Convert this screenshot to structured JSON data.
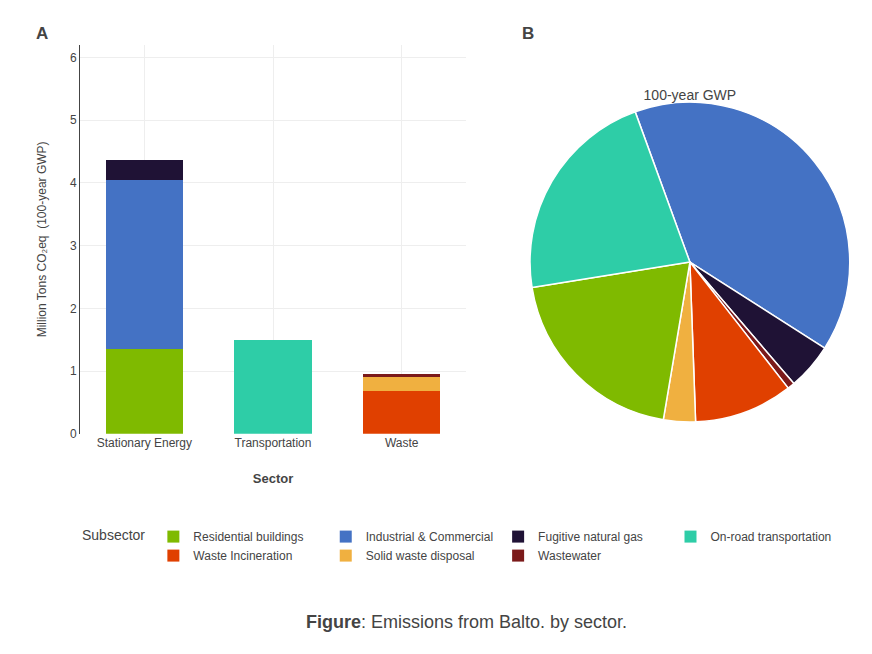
{
  "chart_data": [
    {
      "type": "bar",
      "stacked": true,
      "categories": [
        "Stationary Energy",
        "Transportation",
        "Waste"
      ],
      "series": [
        {
          "name": "Residential buildings",
          "color": "#7FBA00",
          "values": [
            1.35,
            0.0,
            0.0
          ]
        },
        {
          "name": "Industrial & Commercial",
          "color": "#4472C4",
          "values": [
            2.7,
            0.0,
            0.0
          ]
        },
        {
          "name": "Fugitive natural gas",
          "color": "#1F1235",
          "values": [
            0.32,
            0.0,
            0.0
          ]
        },
        {
          "name": "On-road transportation",
          "color": "#2ECDA7",
          "values": [
            0.0,
            1.5,
            0.0
          ]
        },
        {
          "name": "Waste Incineration",
          "color": "#E04000",
          "values": [
            0.0,
            0.0,
            0.68
          ]
        },
        {
          "name": "Solid waste disposal",
          "color": "#F0B040",
          "values": [
            0.0,
            0.0,
            0.22
          ]
        },
        {
          "name": "Wastewater",
          "color": "#7B1A1A",
          "values": [
            0.0,
            0.0,
            0.05
          ]
        }
      ],
      "xlabel": "Sector",
      "ylabel": "Million Tons CO₂eq  (100-year GWP)",
      "ylim": [
        0,
        6.2
      ],
      "yticks": [
        0,
        1,
        2,
        3,
        4,
        5,
        6
      ],
      "grid": true,
      "legend": "bottom",
      "legend_title": "Subsector",
      "annotations": [
        "A",
        "Figure: Emissions from Balto. by sector."
      ]
    },
    {
      "type": "pie",
      "title": "100-year GWP",
      "categories": [
        "Industrial & Commercial",
        "Fugitive natural gas",
        "Wastewater",
        "Waste Incineration",
        "Solid waste disposal",
        "Residential buildings",
        "On-road transportation"
      ],
      "values": [
        2.7,
        0.32,
        0.05,
        0.68,
        0.22,
        1.35,
        1.5
      ],
      "colors": [
        "#4472C4",
        "#1F1235",
        "#7B1A1A",
        "#E04000",
        "#F0B040",
        "#7FBA00",
        "#2ECDA7"
      ],
      "annotations": [
        "B"
      ]
    }
  ]
}
